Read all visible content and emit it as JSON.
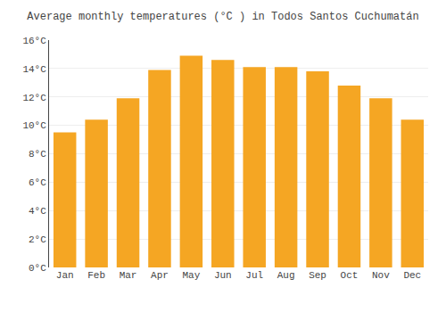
{
  "chart_data": {
    "type": "bar",
    "title": "Average monthly temperatures (°C ) in Todos Santos Cuchumatán",
    "categories": [
      "Jan",
      "Feb",
      "Mar",
      "Apr",
      "May",
      "Jun",
      "Jul",
      "Aug",
      "Sep",
      "Oct",
      "Nov",
      "Dec"
    ],
    "values": [
      9.5,
      10.4,
      11.9,
      13.9,
      14.9,
      14.6,
      14.1,
      14.1,
      13.8,
      12.8,
      11.9,
      10.4
    ],
    "color": "#F5A623",
    "ylim": [
      0,
      16
    ],
    "yticks": [
      {
        "value": 0,
        "label": "0°C"
      },
      {
        "value": 2,
        "label": "2°C"
      },
      {
        "value": 4,
        "label": "4°C"
      },
      {
        "value": 6,
        "label": "6°C"
      },
      {
        "value": 8,
        "label": "8°C"
      },
      {
        "value": 10,
        "label": "10°C"
      },
      {
        "value": 12,
        "label": "12°C"
      },
      {
        "value": 14,
        "label": "14°C"
      },
      {
        "value": 16,
        "label": "16°C"
      }
    ],
    "grid": true
  }
}
